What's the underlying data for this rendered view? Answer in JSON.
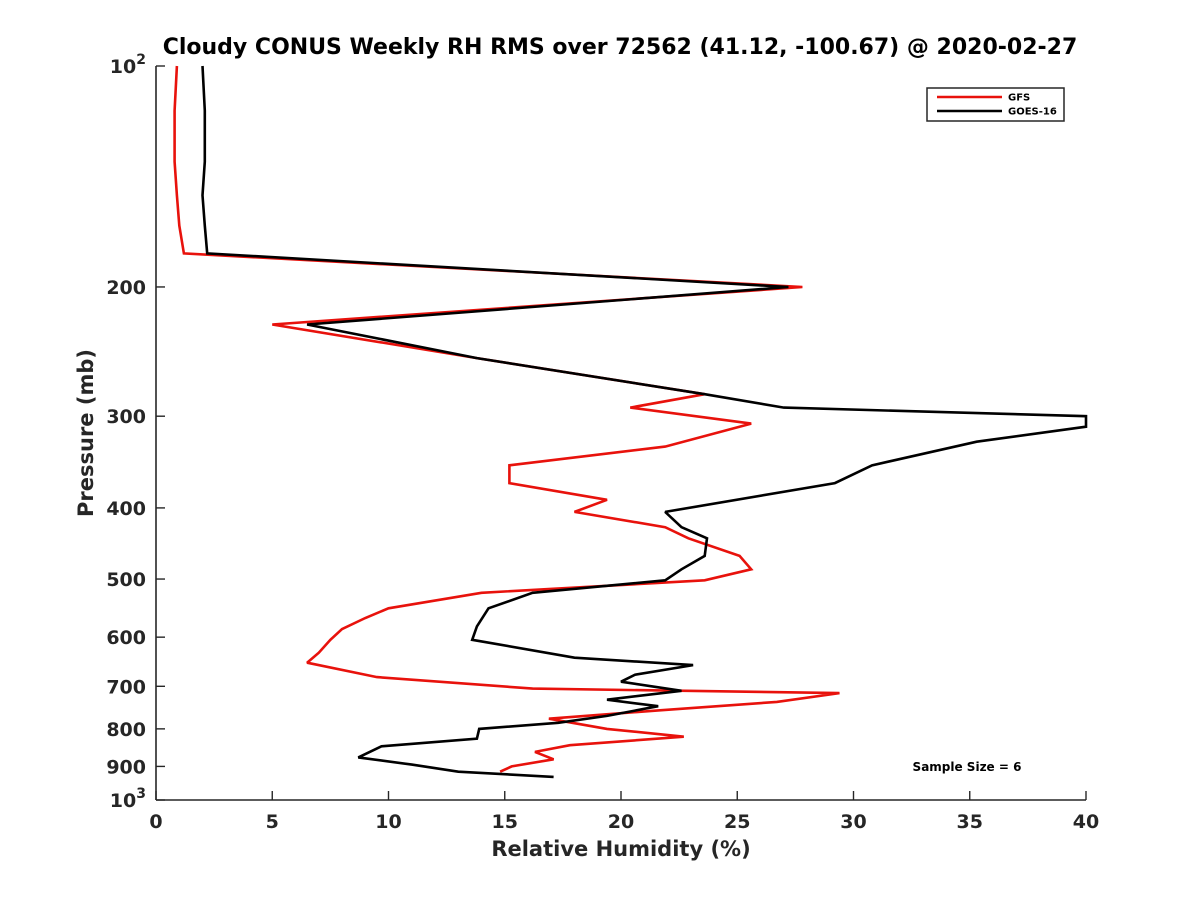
{
  "chart_data": {
    "type": "line",
    "title": "Cloudy CONUS Weekly RH RMS over 72562 (41.12, -100.67) @ 2020-02-27",
    "xlabel": "Relative Humidity (%)",
    "ylabel": "Pressure (mb)",
    "xlim": [
      0,
      40
    ],
    "ylim": [
      100,
      1000
    ],
    "yscale": "log",
    "y_reversed": true,
    "grid": false,
    "legend_position": "top-right",
    "x_ticks": [
      0,
      5,
      10,
      15,
      20,
      25,
      30,
      35,
      40
    ],
    "x_tick_labels": [
      "0",
      "5",
      "10",
      "15",
      "20",
      "25",
      "30",
      "35",
      "40"
    ],
    "y_ticks": [
      100,
      200,
      300,
      400,
      500,
      600,
      700,
      800,
      900,
      1000
    ],
    "y_tick_labels": [
      {
        "base": "10",
        "exp": "2"
      },
      {
        "base": "200",
        "exp": ""
      },
      {
        "base": "300",
        "exp": ""
      },
      {
        "base": "400",
        "exp": ""
      },
      {
        "base": "500",
        "exp": ""
      },
      {
        "base": "600",
        "exp": ""
      },
      {
        "base": "700",
        "exp": ""
      },
      {
        "base": "800",
        "exp": ""
      },
      {
        "base": "900",
        "exp": ""
      },
      {
        "base": "10",
        "exp": "3"
      }
    ],
    "annotation": "Sample Size = 6",
    "series": [
      {
        "name": "GFS",
        "color": "#e8120c",
        "points": [
          [
            0.9,
            100
          ],
          [
            0.8,
            115
          ],
          [
            0.8,
            135
          ],
          [
            0.9,
            150
          ],
          [
            1.0,
            165
          ],
          [
            1.2,
            180
          ],
          [
            27.8,
            200
          ],
          [
            5.0,
            225
          ],
          [
            13.8,
            250
          ],
          [
            23.6,
            280
          ],
          [
            20.4,
            292
          ],
          [
            25.6,
            307
          ],
          [
            21.9,
            330
          ],
          [
            15.2,
            350
          ],
          [
            15.2,
            370
          ],
          [
            19.4,
            390
          ],
          [
            18.0,
            405
          ],
          [
            21.9,
            425
          ],
          [
            22.9,
            440
          ],
          [
            25.1,
            465
          ],
          [
            25.6,
            485
          ],
          [
            23.6,
            502
          ],
          [
            14.0,
            522
          ],
          [
            10.0,
            548
          ],
          [
            9.0,
            565
          ],
          [
            8.0,
            585
          ],
          [
            7.5,
            605
          ],
          [
            7.0,
            630
          ],
          [
            6.5,
            650
          ],
          [
            9.5,
            680
          ],
          [
            16.2,
            705
          ],
          [
            29.4,
            715
          ],
          [
            26.7,
            735
          ],
          [
            21.6,
            755
          ],
          [
            16.9,
            775
          ],
          [
            19.4,
            800
          ],
          [
            22.7,
            820
          ],
          [
            17.8,
            842
          ],
          [
            16.3,
            860
          ],
          [
            17.1,
            880
          ],
          [
            15.3,
            900
          ],
          [
            14.8,
            915
          ]
        ]
      },
      {
        "name": "GOES-16",
        "color": "#000000",
        "points": [
          [
            2.0,
            100
          ],
          [
            2.1,
            115
          ],
          [
            2.1,
            135
          ],
          [
            2.0,
            150
          ],
          [
            2.1,
            165
          ],
          [
            2.2,
            180
          ],
          [
            27.2,
            200
          ],
          [
            6.5,
            225
          ],
          [
            13.8,
            250
          ],
          [
            23.6,
            280
          ],
          [
            27.0,
            292
          ],
          [
            40.0,
            300
          ],
          [
            40.0,
            310
          ],
          [
            35.3,
            325
          ],
          [
            30.8,
            350
          ],
          [
            29.2,
            370
          ],
          [
            21.9,
            405
          ],
          [
            22.6,
            425
          ],
          [
            23.7,
            440
          ],
          [
            23.6,
            465
          ],
          [
            22.6,
            485
          ],
          [
            21.9,
            502
          ],
          [
            16.2,
            522
          ],
          [
            14.3,
            548
          ],
          [
            13.8,
            580
          ],
          [
            13.6,
            605
          ],
          [
            18.0,
            640
          ],
          [
            23.1,
            655
          ],
          [
            20.6,
            675
          ],
          [
            20.0,
            690
          ],
          [
            22.6,
            710
          ],
          [
            19.4,
            730
          ],
          [
            21.6,
            745
          ],
          [
            19.4,
            768
          ],
          [
            17.3,
            785
          ],
          [
            13.9,
            800
          ],
          [
            13.8,
            825
          ],
          [
            9.7,
            845
          ],
          [
            8.7,
            875
          ],
          [
            11.0,
            895
          ],
          [
            13.0,
            915
          ],
          [
            17.1,
            930
          ]
        ]
      }
    ]
  }
}
